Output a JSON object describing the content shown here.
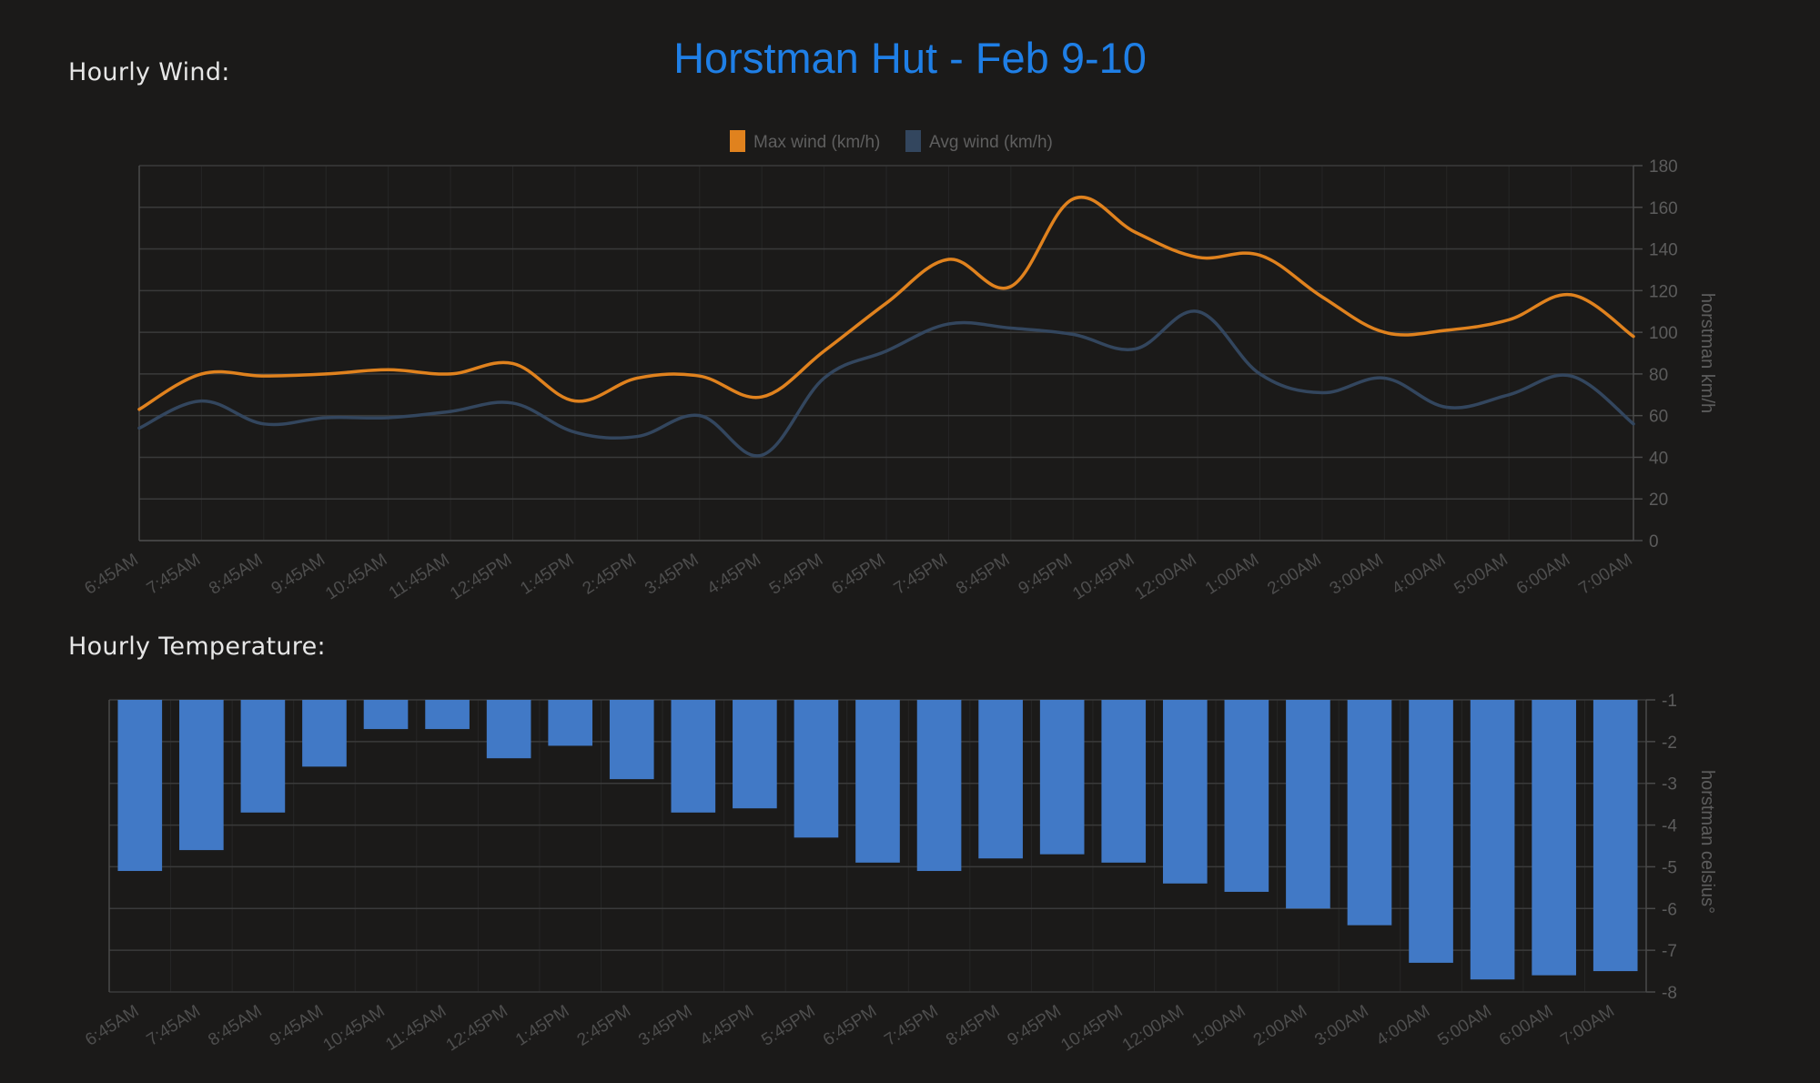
{
  "page": {
    "title": "Horstman Hut - Feb 9-10",
    "wind_label": "Hourly Wind:",
    "temp_label": "Hourly Temperature:"
  },
  "colors": {
    "background": "#1b1a19",
    "title": "#1f7fe6",
    "max_wind": "#e0821e",
    "avg_wind": "#33465e",
    "temperature": "#4179c6",
    "grid": "#3a3a3a",
    "tick": "#4a4a4a"
  },
  "chart_data": [
    {
      "type": "line",
      "legend_position": "top-center",
      "ylabel": "horstman km/h",
      "ylim": [
        0,
        180
      ],
      "yticks": [
        0,
        20,
        40,
        60,
        80,
        100,
        120,
        140,
        160,
        180
      ],
      "grid": true,
      "categories": [
        "6:45AM",
        "7:45AM",
        "8:45AM",
        "9:45AM",
        "10:45AM",
        "11:45AM",
        "12:45PM",
        "1:45PM",
        "2:45PM",
        "3:45PM",
        "4:45PM",
        "5:45PM",
        "6:45PM",
        "7:45PM",
        "8:45PM",
        "9:45PM",
        "10:45PM",
        "12:00AM",
        "1:00AM",
        "2:00AM",
        "3:00AM",
        "4:00AM",
        "5:00AM",
        "6:00AM",
        "7:00AM"
      ],
      "series": [
        {
          "name": "Max wind (km/h)",
          "values": [
            63,
            80,
            79,
            80,
            82,
            80,
            85,
            67,
            78,
            79,
            69,
            91,
            114,
            135,
            122,
            164,
            148,
            136,
            137,
            117,
            100,
            101,
            106,
            118,
            98
          ]
        },
        {
          "name": "Avg wind (km/h)",
          "values": [
            54,
            67,
            56,
            59,
            59,
            62,
            66,
            52,
            50,
            60,
            41,
            78,
            91,
            104,
            102,
            99,
            92,
            110,
            80,
            71,
            78,
            64,
            70,
            79,
            56
          ]
        }
      ]
    },
    {
      "type": "bar",
      "ylabel": "horstman celsius°",
      "ylim": [
        -8,
        -1
      ],
      "yticks": [
        -1,
        -2,
        -3,
        -4,
        -5,
        -6,
        -7,
        -8
      ],
      "grid": true,
      "categories": [
        "6:45AM",
        "7:45AM",
        "8:45AM",
        "9:45AM",
        "10:45AM",
        "11:45AM",
        "12:45PM",
        "1:45PM",
        "2:45PM",
        "3:45PM",
        "4:45PM",
        "5:45PM",
        "6:45PM",
        "7:45PM",
        "8:45PM",
        "9:45PM",
        "10:45PM",
        "12:00AM",
        "1:00AM",
        "2:00AM",
        "3:00AM",
        "4:00AM",
        "5:00AM",
        "6:00AM",
        "7:00AM"
      ],
      "series": [
        {
          "values": [
            -5.1,
            -4.6,
            -3.7,
            -2.6,
            -1.7,
            -1.7,
            -2.4,
            -2.1,
            -2.9,
            -3.7,
            -3.6,
            -4.3,
            -4.9,
            -5.1,
            -4.8,
            -4.7,
            -4.9,
            -5.4,
            -5.6,
            -6.0,
            -6.4,
            -7.3,
            -7.7,
            -7.6,
            -7.5
          ]
        }
      ]
    }
  ]
}
